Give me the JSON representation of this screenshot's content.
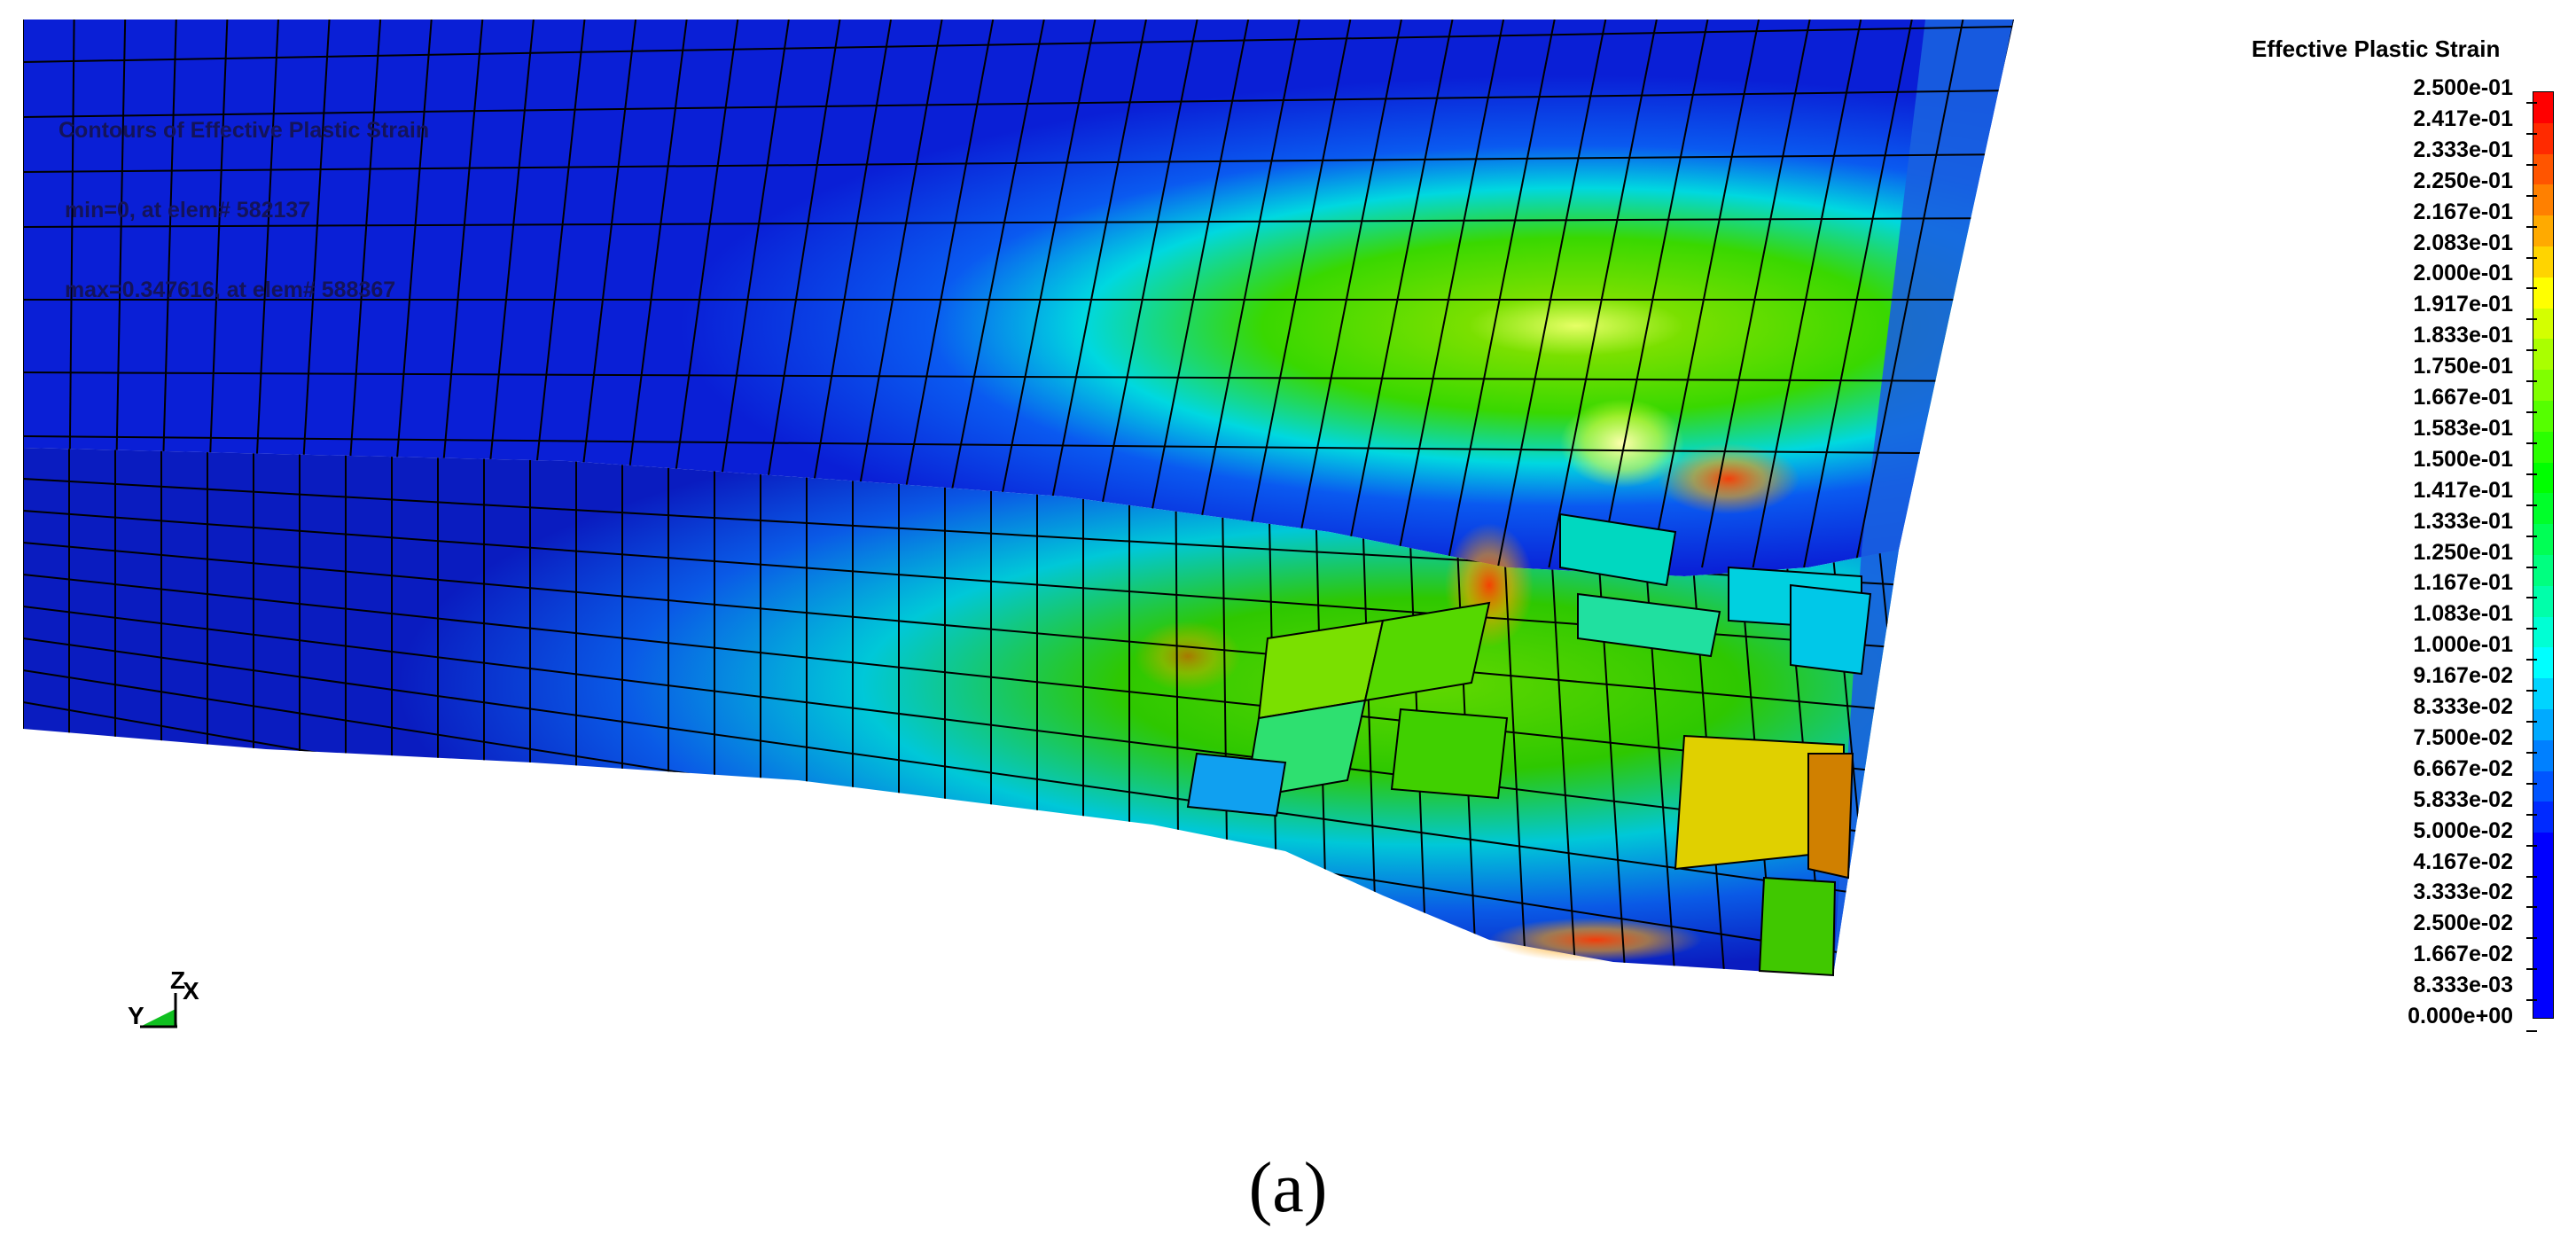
{
  "plot_info": {
    "line1": "Contours of Effective Plastic Strain",
    "line2": " min=0, at elem# 582137",
    "line3": " max=0.347616, at elem# 588367"
  },
  "legend": {
    "title": "Effective Plastic Strain",
    "labels": [
      "2.500e-01",
      "2.417e-01",
      "2.333e-01",
      "2.250e-01",
      "2.167e-01",
      "2.083e-01",
      "2.000e-01",
      "1.917e-01",
      "1.833e-01",
      "1.750e-01",
      "1.667e-01",
      "1.583e-01",
      "1.500e-01",
      "1.417e-01",
      "1.333e-01",
      "1.250e-01",
      "1.167e-01",
      "1.083e-01",
      "1.000e-01",
      "9.167e-02",
      "8.333e-02",
      "7.500e-02",
      "6.667e-02",
      "5.833e-02",
      "5.000e-02",
      "4.167e-02",
      "3.333e-02",
      "2.500e-02",
      "1.667e-02",
      "8.333e-03",
      "0.000e+00"
    ],
    "colors": [
      "#ff0000",
      "#ff2a00",
      "#ff5500",
      "#ff8000",
      "#ffaa00",
      "#ffd400",
      "#ffff00",
      "#d4ff00",
      "#aaff00",
      "#80ff00",
      "#55ff00",
      "#2aff00",
      "#00ff00",
      "#00ff2a",
      "#00ff55",
      "#00ff80",
      "#00ffaa",
      "#00ffd4",
      "#00ffff",
      "#00d4ff",
      "#00aaff",
      "#0080ff",
      "#0055ff",
      "#002aff",
      "#0000ff",
      "#0000ff",
      "#0000ff",
      "#0000ff",
      "#0000ff",
      "#0000ff"
    ]
  },
  "triad": {
    "z": "Z",
    "x": "X",
    "y": "Y"
  },
  "caption": "(a)",
  "colors": {
    "base_blue": "#0a1fd6",
    "side_blue": "#0a1cc0",
    "mesh_line": "#000000"
  }
}
